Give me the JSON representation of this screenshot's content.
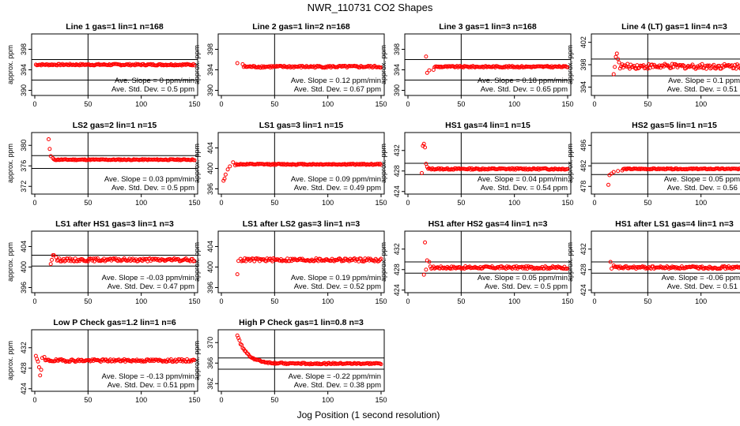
{
  "figure": {
    "title": "NWR_110731  CO2 Shapes",
    "xlabel": "Jog Position (1 second resolution)"
  },
  "colors": {
    "points": "#ff0000",
    "axes": "#000000"
  },
  "chart_data": [
    {
      "type": "scatter",
      "title": "Line 1 gas=1 lin=1 n=168",
      "ylabel": "approx. ppm",
      "xlim": [
        0,
        150
      ],
      "ylim": [
        389,
        401
      ],
      "xticks": [
        0,
        50,
        100,
        150
      ],
      "yticks": [
        390,
        394,
        398
      ],
      "hlines": [
        396,
        392
      ],
      "vline": 50,
      "slope_text": "Ave. Slope = 0  ppm/min",
      "std_text": "Ave. Std. Dev. = 0.5  ppm",
      "series_profile": {
        "x_start": 1,
        "x_end": 150,
        "baseline": 395.0,
        "noise": 0.15,
        "initial": []
      }
    },
    {
      "type": "scatter",
      "title": "Line 2 gas=1 lin=2 n=168",
      "ylabel": "approx. ppm",
      "xlim": [
        0,
        150
      ],
      "ylim": [
        389,
        401
      ],
      "xticks": [
        0,
        50,
        100,
        150
      ],
      "yticks": [
        390,
        394,
        398
      ],
      "hlines": [],
      "vline": 50,
      "slope_text": "Ave. Slope = 0.12  ppm/min",
      "std_text": "Ave. Std. Dev. = 0.67  ppm",
      "series_profile": {
        "x_start": 1,
        "x_end": 150,
        "baseline": 394.6,
        "noise": 0.2,
        "initial": [
          [
            15,
            395.3
          ],
          [
            20,
            395.1
          ]
        ]
      }
    },
    {
      "type": "scatter",
      "title": "Line 3 gas=1 lin=3 n=168",
      "ylabel": "approx. ppm",
      "xlim": [
        0,
        150
      ],
      "ylim": [
        389,
        401
      ],
      "xticks": [
        0,
        50,
        100,
        150
      ],
      "yticks": [
        390,
        394,
        398
      ],
      "hlines": [
        396,
        392
      ],
      "vline": 50,
      "slope_text": "Ave. Slope = 0.18  ppm/min",
      "std_text": "Ave. Std. Dev. = 0.65  ppm",
      "series_profile": {
        "x_start": 17,
        "x_end": 150,
        "baseline": 394.6,
        "noise": 0.15,
        "initial": [
          [
            17,
            396.6
          ],
          [
            18,
            393.4
          ],
          [
            20,
            393.9
          ],
          [
            24,
            394.0
          ]
        ]
      }
    },
    {
      "type": "scatter",
      "title": "Line 4 (LT) gas=1 lin=4 n=3",
      "ylabel": "approx. ppm",
      "xlim": [
        0,
        150
      ],
      "ylim": [
        392.5,
        403.5
      ],
      "xticks": [
        0,
        50,
        100,
        150
      ],
      "yticks": [
        394,
        398,
        402
      ],
      "hlines": [
        399,
        396
      ],
      "vline": 50,
      "slope_text": "Ave. Slope = 0.1  ppm/min",
      "std_text": "Ave. Std. Dev. = 0.51  ppm",
      "series_profile": {
        "x_start": 18,
        "x_end": 150,
        "baseline": 397.7,
        "noise": 0.45,
        "initial": [
          [
            18,
            396.3
          ],
          [
            19,
            397.6
          ],
          [
            20,
            399.4
          ],
          [
            21,
            400.0
          ],
          [
            22,
            399.0
          ],
          [
            23,
            398.4
          ]
        ]
      }
    },
    {
      "type": "scatter",
      "title": "LS2 gas=2 lin=1 n=15",
      "ylabel": "approx. ppm",
      "xlim": [
        0,
        150
      ],
      "ylim": [
        370.5,
        382.5
      ],
      "xticks": [
        0,
        50,
        100,
        150
      ],
      "yticks": [
        372,
        376,
        380
      ],
      "hlines": [
        378,
        375.5
      ],
      "vline": 50,
      "slope_text": "Ave. Slope = 0.03  ppm/min",
      "std_text": "Ave. Std. Dev. = 0.5  ppm",
      "series_profile": {
        "x_start": 13,
        "x_end": 150,
        "baseline": 377.2,
        "noise": 0.1,
        "initial": [
          [
            13,
            381.2
          ],
          [
            14,
            379.3
          ],
          [
            15,
            377.9
          ],
          [
            17,
            377.5
          ]
        ]
      }
    },
    {
      "type": "scatter",
      "title": "LS1 gas=3 lin=1 n=15",
      "ylabel": "approx. ppm",
      "xlim": [
        0,
        150
      ],
      "ylim": [
        395,
        407
      ],
      "xticks": [
        0,
        50,
        100,
        150
      ],
      "yticks": [
        396,
        400,
        404
      ],
      "hlines": [],
      "vline": 50,
      "slope_text": "Ave. Slope = 0.09  ppm/min",
      "std_text": "Ave. Std. Dev. = 0.49  ppm",
      "series_profile": {
        "x_start": 2,
        "x_end": 150,
        "baseline": 400.8,
        "noise": 0.12,
        "initial": [
          [
            2,
            397.6
          ],
          [
            3,
            398.0
          ],
          [
            4,
            398.8
          ],
          [
            6,
            399.8
          ],
          [
            8,
            400.4
          ],
          [
            11,
            401.2
          ],
          [
            13,
            400.6
          ]
        ]
      }
    },
    {
      "type": "scatter",
      "title": "HS1 gas=4 lin=1 n=15",
      "ylabel": "approx. ppm",
      "xlim": [
        0,
        150
      ],
      "ylim": [
        423.5,
        435.5
      ],
      "xticks": [
        0,
        50,
        100,
        150
      ],
      "yticks": [
        424,
        428,
        432
      ],
      "hlines": [
        429.5,
        427.3
      ],
      "vline": 50,
      "slope_text": "Ave. Slope = 0.04  ppm/min",
      "std_text": "Ave. Std. Dev. = 0.54  ppm",
      "series_profile": {
        "x_start": 13,
        "x_end": 150,
        "baseline": 428.4,
        "noise": 0.15,
        "initial": [
          [
            13,
            427.6
          ],
          [
            14,
            432.9
          ],
          [
            15,
            433.3
          ],
          [
            16,
            432.6
          ],
          [
            17,
            429.4
          ],
          [
            18,
            428.8
          ]
        ]
      }
    },
    {
      "type": "scatter",
      "title": "HS2 gas=5 lin=1 n=15",
      "ylabel": "approx. ppm",
      "xlim": [
        0,
        150
      ],
      "ylim": [
        476.5,
        488.5
      ],
      "xticks": [
        0,
        50,
        100,
        150
      ],
      "yticks": [
        478,
        482,
        486
      ],
      "hlines": [
        482.5,
        480.3
      ],
      "vline": 50,
      "slope_text": "Ave. Slope = 0.05  ppm/min",
      "std_text": "Ave. Std. Dev. = 0.56  ppm",
      "series_profile": {
        "x_start": 13,
        "x_end": 150,
        "baseline": 481.4,
        "noise": 0.1,
        "initial": [
          [
            13,
            478.3
          ],
          [
            14,
            480.2
          ],
          [
            16,
            480.5
          ],
          [
            18,
            480.8
          ],
          [
            22,
            481.0
          ],
          [
            26,
            481.1
          ]
        ]
      }
    },
    {
      "type": "scatter",
      "title": "LS1 after HS1 gas=3 lin=1 n=3",
      "ylabel": "approx. ppm",
      "xlim": [
        0,
        150
      ],
      "ylim": [
        395,
        407
      ],
      "xticks": [
        0,
        50,
        100,
        150
      ],
      "yticks": [
        396,
        400,
        404
      ],
      "hlines": [
        402.3,
        400.2
      ],
      "vline": 50,
      "slope_text": "Ave. Slope = -0.03  ppm/min",
      "std_text": "Ave. Std. Dev. = 0.47  ppm",
      "series_profile": {
        "x_start": 15,
        "x_end": 150,
        "baseline": 401.4,
        "noise": 0.3,
        "initial": [
          [
            15,
            400.6
          ],
          [
            16,
            401.4
          ],
          [
            17,
            402.3
          ],
          [
            18,
            402.3
          ],
          [
            20,
            401.9
          ]
        ]
      }
    },
    {
      "type": "scatter",
      "title": "LS1 after LS2 gas=3 lin=1 n=3",
      "ylabel": "approx. ppm",
      "xlim": [
        0,
        150
      ],
      "ylim": [
        395,
        407
      ],
      "xticks": [
        0,
        50,
        100,
        150
      ],
      "yticks": [
        396,
        400,
        404
      ],
      "hlines": [],
      "vline": 50,
      "slope_text": "Ave. Slope = 0.19  ppm/min",
      "std_text": "Ave. Std. Dev. = 0.52  ppm",
      "series_profile": {
        "x_start": 15,
        "x_end": 150,
        "baseline": 401.4,
        "noise": 0.32,
        "initial": [
          [
            15,
            398.6
          ],
          [
            16,
            401.2
          ],
          [
            18,
            401.6
          ]
        ]
      }
    },
    {
      "type": "scatter",
      "title": "HS1 after HS2 gas=4 lin=1 n=3",
      "ylabel": "approx. ppm",
      "xlim": [
        0,
        150
      ],
      "ylim": [
        423.5,
        435.5
      ],
      "xticks": [
        0,
        50,
        100,
        150
      ],
      "yticks": [
        424,
        428,
        432
      ],
      "hlines": [
        429.5,
        427.3
      ],
      "vline": 50,
      "slope_text": "Ave. Slope = 0.05  ppm/min",
      "std_text": "Ave. Std. Dev. = 0.5  ppm",
      "series_profile": {
        "x_start": 15,
        "x_end": 150,
        "baseline": 428.4,
        "noise": 0.25,
        "initial": [
          [
            15,
            427.0
          ],
          [
            16,
            433.3
          ],
          [
            17,
            428.0
          ],
          [
            18,
            429.8
          ],
          [
            20,
            429.5
          ]
        ]
      }
    },
    {
      "type": "scatter",
      "title": "HS1 after LS1 gas=4 lin=1 n=3",
      "ylabel": "approx. ppm",
      "xlim": [
        0,
        150
      ],
      "ylim": [
        423.5,
        435.5
      ],
      "xticks": [
        0,
        50,
        100,
        150
      ],
      "yticks": [
        424,
        428,
        432
      ],
      "hlines": [
        429.5,
        427.3
      ],
      "vline": 50,
      "slope_text": "Ave. Slope = -0.06  ppm/min",
      "std_text": "Ave. Std. Dev. = 0.51  ppm",
      "series_profile": {
        "x_start": 15,
        "x_end": 150,
        "baseline": 428.4,
        "noise": 0.25,
        "initial": [
          [
            15,
            429.5
          ],
          [
            16,
            428.2
          ],
          [
            18,
            428.8
          ]
        ]
      }
    },
    {
      "type": "scatter",
      "title": "Low P Check gas=1.2 lin=1 n=6",
      "ylabel": "approx. ppm",
      "xlim": [
        0,
        150
      ],
      "ylim": [
        423.5,
        435.5
      ],
      "xticks": [
        0,
        50,
        100,
        150
      ],
      "yticks": [
        424,
        428,
        432
      ],
      "hlines": [],
      "vline": 50,
      "slope_text": "Ave. Slope = -0.13  ppm/min",
      "std_text": "Ave. Std. Dev. = 0.51  ppm",
      "series_profile": {
        "x_start": 1,
        "x_end": 150,
        "baseline": 429.5,
        "noise": 0.25,
        "initial": [
          [
            1,
            430.4
          ],
          [
            2,
            429.8
          ],
          [
            3,
            429.3
          ],
          [
            4,
            428.2
          ],
          [
            5,
            426.6
          ],
          [
            6,
            427.7
          ],
          [
            7,
            430.0
          ],
          [
            9,
            430.2
          ]
        ]
      }
    },
    {
      "type": "scatter",
      "title": "High P Check gas=1 lin=0.8 n=3",
      "ylabel": "approx. ppm",
      "xlim": [
        0,
        150
      ],
      "ylim": [
        360.5,
        372.5
      ],
      "xticks": [
        0,
        50,
        100,
        150
      ],
      "yticks": [
        362,
        366,
        370
      ],
      "hlines": [
        367,
        364.8
      ],
      "vline": 50,
      "slope_text": "Ave. Slope = -0.22  ppm/min",
      "std_text": "Ave. Std. Dev. = 0.38  ppm",
      "series_profile": {
        "x_start": 15,
        "x_end": 150,
        "baseline": 365.9,
        "noise": 0.15,
        "decay": {
          "x0": 15,
          "y0": 371.4,
          "tau": 9
        },
        "initial": []
      }
    }
  ]
}
